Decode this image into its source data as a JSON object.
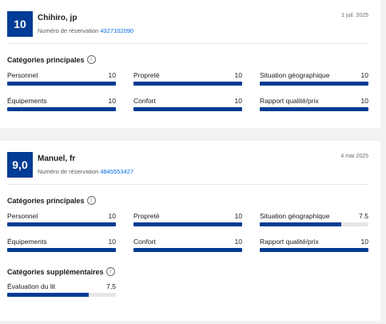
{
  "reviews": [
    {
      "score": "10",
      "name": "Chihiro, jp",
      "date": "1 juil. 2025",
      "reservation_label": "Numéro de réservation",
      "reservation_number": "4327102090",
      "main_title": "Catégories principales",
      "categories": [
        {
          "label": "Personnel",
          "value": "10",
          "fraction": 1.0
        },
        {
          "label": "Propreté",
          "value": "10",
          "fraction": 1.0
        },
        {
          "label": "Situation géographique",
          "value": "10",
          "fraction": 1.0
        },
        {
          "label": "Équipements",
          "value": "10",
          "fraction": 1.0
        },
        {
          "label": "Confort",
          "value": "10",
          "fraction": 1.0
        },
        {
          "label": "Rapport qualité/prix",
          "value": "10",
          "fraction": 1.0
        }
      ]
    },
    {
      "score": "9,0",
      "name": "Manuel, fr",
      "date": "4 mai 2025",
      "reservation_label": "Numéro de réservation",
      "reservation_number": "4845553427",
      "main_title": "Catégories principales",
      "categories": [
        {
          "label": "Personnel",
          "value": "10",
          "fraction": 1.0
        },
        {
          "label": "Propreté",
          "value": "10",
          "fraction": 1.0
        },
        {
          "label": "Situation géographique",
          "value": "7.5",
          "fraction": 0.75
        },
        {
          "label": "Équipements",
          "value": "10",
          "fraction": 1.0
        },
        {
          "label": "Confort",
          "value": "10",
          "fraction": 1.0
        },
        {
          "label": "Rapport qualité/prix",
          "value": "10",
          "fraction": 1.0
        }
      ],
      "extra_title": "Catégories supplémentaires",
      "extra_categories": [
        {
          "label": "Évaluation du lit",
          "value": "7,5",
          "fraction": 0.75
        }
      ]
    }
  ],
  "colors": {
    "score_bg": "#003b95",
    "bar_fill": "#003b95",
    "bar_track": "#e7e7e7",
    "link": "#006ce4"
  },
  "icons": {
    "info": "info-circle-icon"
  }
}
